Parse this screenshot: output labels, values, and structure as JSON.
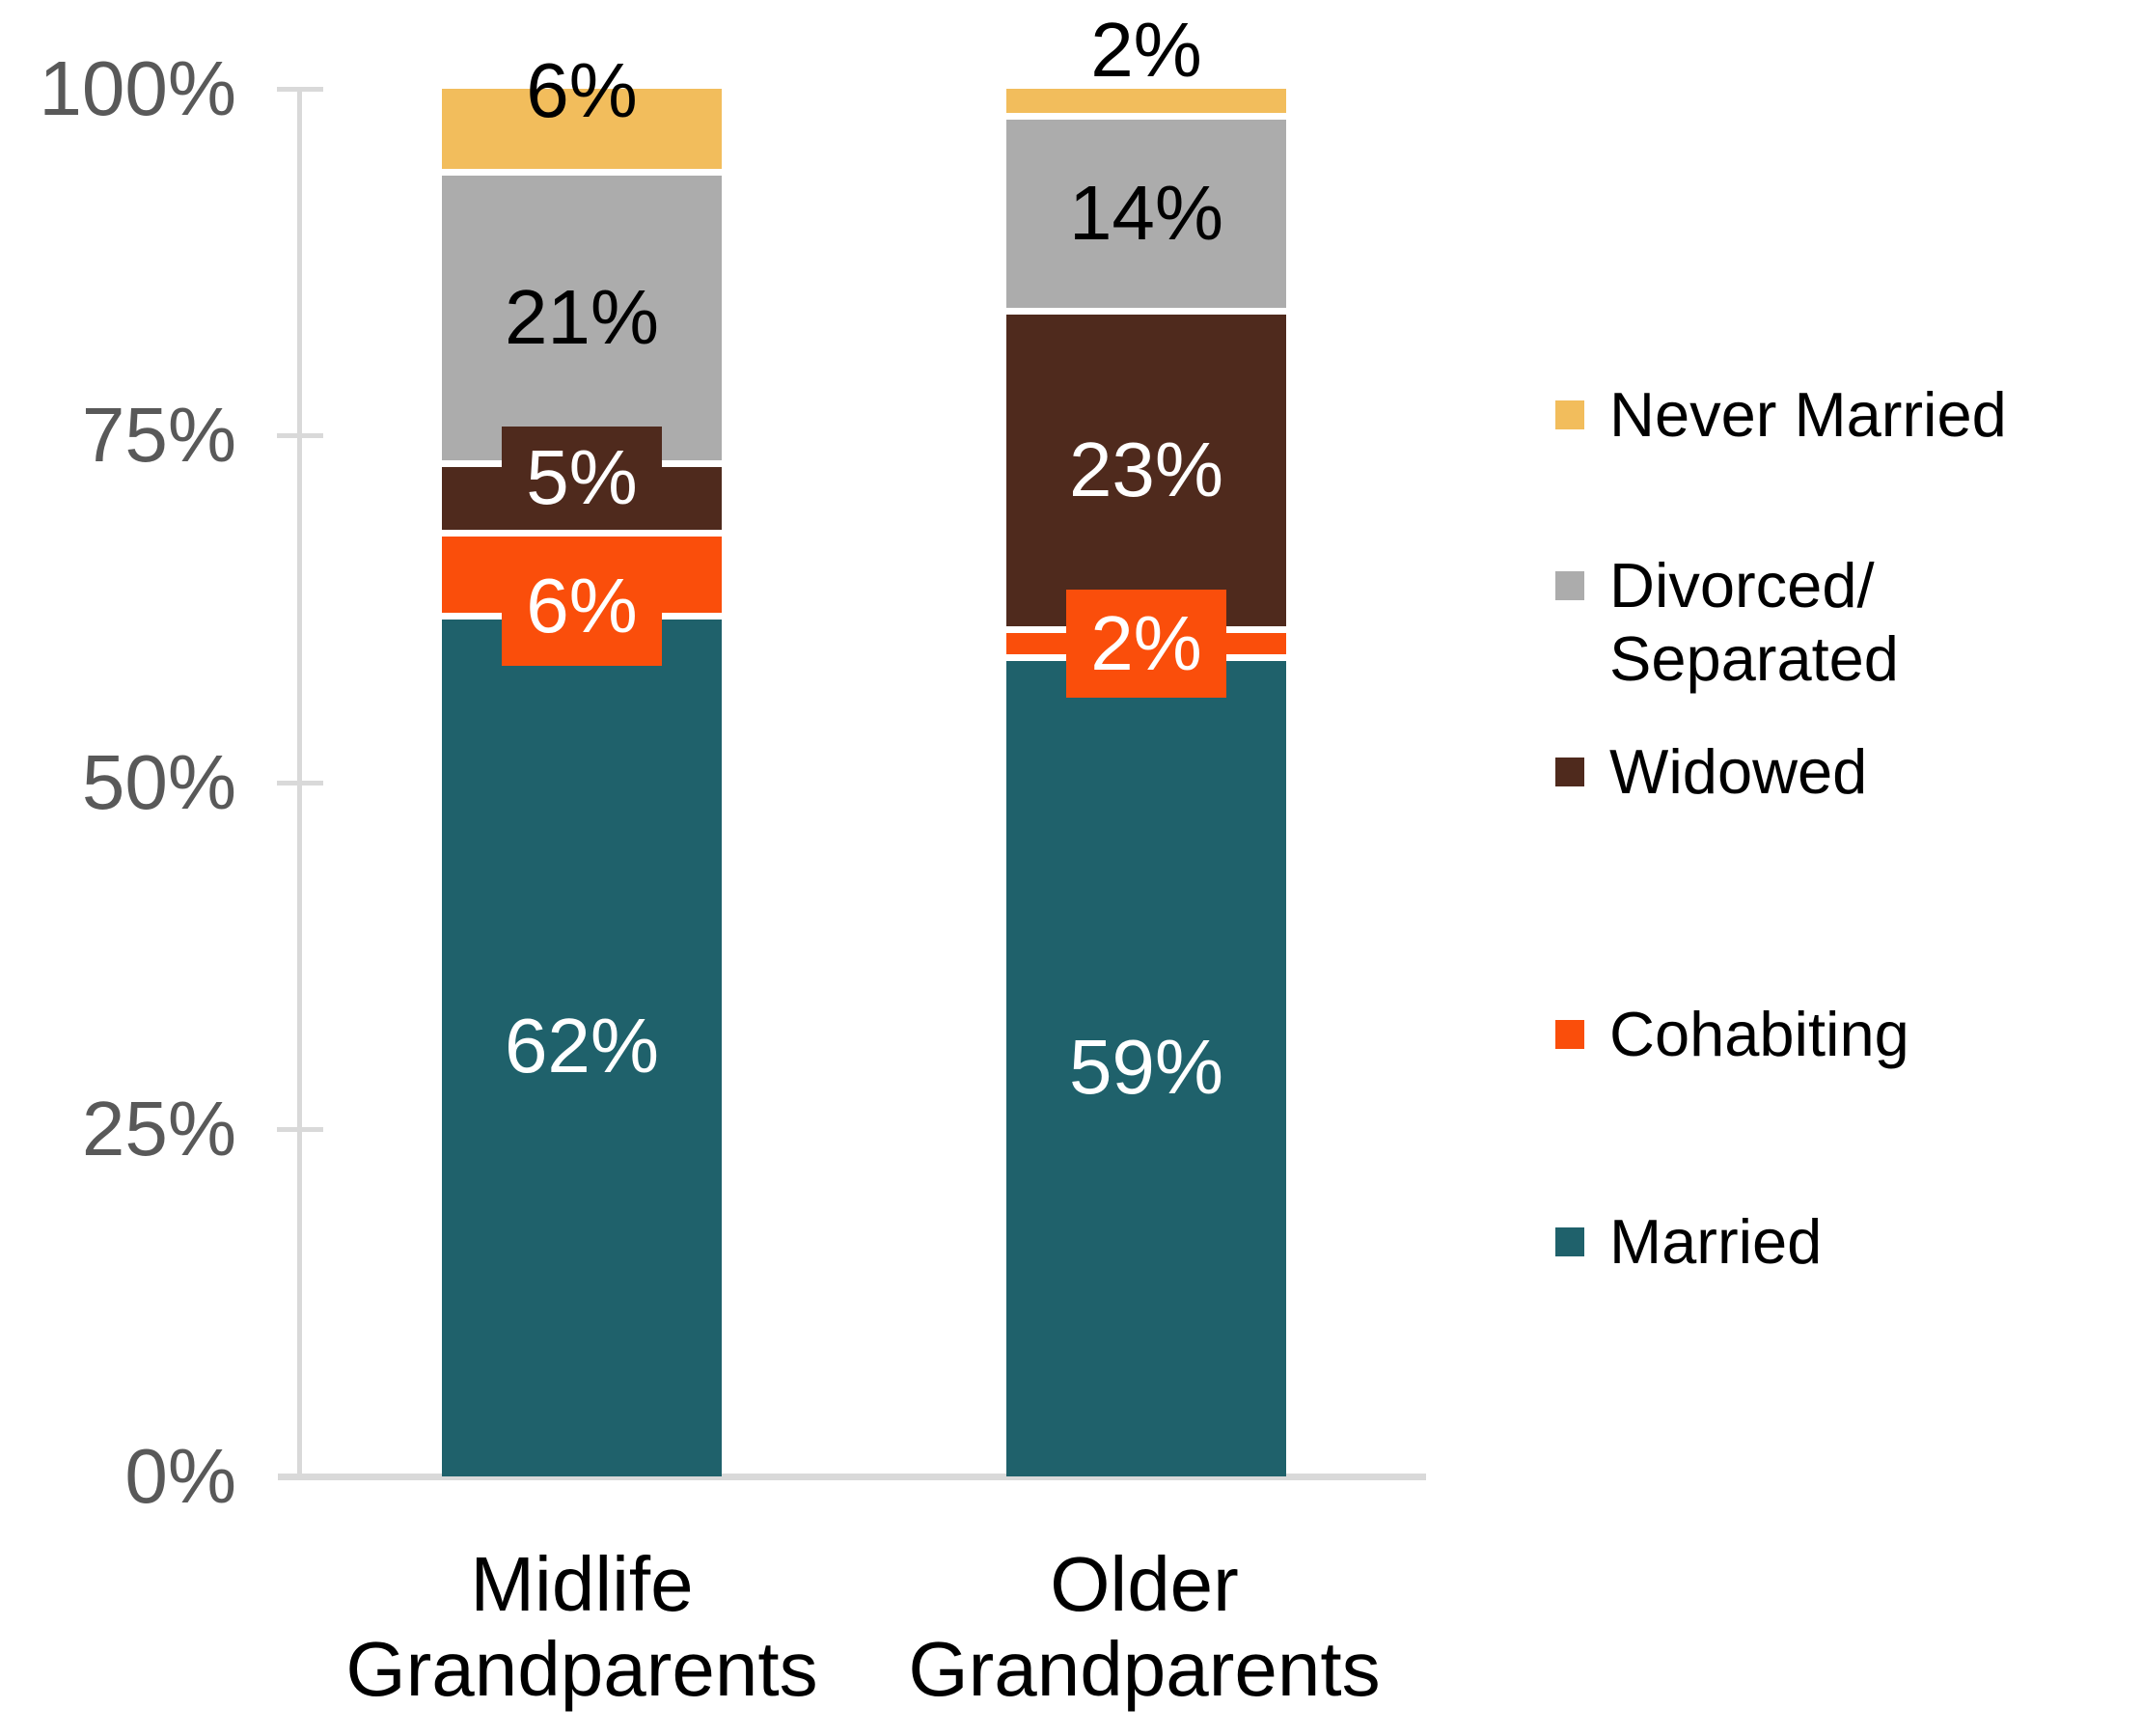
{
  "chart_data": {
    "type": "bar",
    "stacked": true,
    "units": "percent",
    "title": "",
    "xlabel": "",
    "ylabel": "",
    "ylim": [
      0,
      100
    ],
    "grid": false,
    "legend_position": "right",
    "categories": [
      "Midlife Grandparents",
      "Older Grandparents"
    ],
    "series": [
      {
        "name": "Married",
        "color": "#1F616B",
        "values": [
          62,
          59
        ]
      },
      {
        "name": "Cohabiting",
        "color": "#FA4E0B",
        "values": [
          6,
          2
        ]
      },
      {
        "name": "Widowed",
        "color": "#4F2A1D",
        "values": [
          5,
          23
        ]
      },
      {
        "name": "Divorced/Separated",
        "color": "#ACACAC",
        "values": [
          21,
          14
        ]
      },
      {
        "name": "Never Married",
        "color": "#F2BD5C",
        "values": [
          6,
          2
        ]
      }
    ],
    "yticks": {
      "y100": "100%",
      "y75": "75%",
      "y50": "50%",
      "y25": "25%",
      "y0": "0%"
    },
    "axis_color": "#D9D9D9",
    "tick_label_color": "#595959",
    "xlabels": [
      [
        "Midlife",
        "Grandparents"
      ],
      [
        "Older",
        "Grandparents"
      ]
    ],
    "bars": [
      {
        "segments": [
          {
            "series": "Married",
            "value": 62,
            "label": "62%",
            "color": "#1F616B",
            "label_color": "#FFFFFF",
            "mode": "inside"
          },
          {
            "series": "Cohabiting",
            "value": 6,
            "label": "6%",
            "color": "#FA4E0B",
            "label_color": "#FFFFFF",
            "mode": "callout-below"
          },
          {
            "series": "Widowed",
            "value": 5,
            "label": "5%",
            "color": "#4F2A1D",
            "label_color": "#FFFFFF",
            "mode": "callout-above"
          },
          {
            "series": "Divorced/Separated",
            "value": 21,
            "label": "21%",
            "color": "#ACACAC",
            "label_color": "#000000",
            "mode": "inside"
          },
          {
            "series": "Never Married",
            "value": 6,
            "label": "6%",
            "color": "#F2BD5C",
            "label_color": "#000000",
            "mode": "top-edge"
          }
        ]
      },
      {
        "segments": [
          {
            "series": "Married",
            "value": 59,
            "label": "59%",
            "color": "#1F616B",
            "label_color": "#FFFFFF",
            "mode": "inside"
          },
          {
            "series": "Cohabiting",
            "value": 2,
            "label": "2%",
            "color": "#FA4E0B",
            "label_color": "#FFFFFF",
            "mode": "callout-middle"
          },
          {
            "series": "Widowed",
            "value": 23,
            "label": "23%",
            "color": "#4F2A1D",
            "label_color": "#FFFFFF",
            "mode": "inside"
          },
          {
            "series": "Divorced/Separated",
            "value": 14,
            "label": "14%",
            "color": "#ACACAC",
            "label_color": "#000000",
            "mode": "inside"
          },
          {
            "series": "Never Married",
            "value": 2,
            "label": "2%",
            "color": "#F2BD5C",
            "label_color": "#000000",
            "mode": "above"
          }
        ]
      }
    ],
    "legend": [
      {
        "id": "never-married",
        "lines": [
          "Never Married"
        ],
        "color": "#F2BD5C"
      },
      {
        "id": "divorced-separated",
        "lines": [
          "Divorced/",
          "Separated"
        ],
        "color": "#ACACAC"
      },
      {
        "id": "widowed",
        "lines": [
          "Widowed"
        ],
        "color": "#4F2A1D"
      },
      {
        "id": "cohabiting",
        "lines": [
          "Cohabiting"
        ],
        "color": "#FA4E0B"
      },
      {
        "id": "married",
        "lines": [
          "Married"
        ],
        "color": "#1F616B"
      }
    ]
  }
}
